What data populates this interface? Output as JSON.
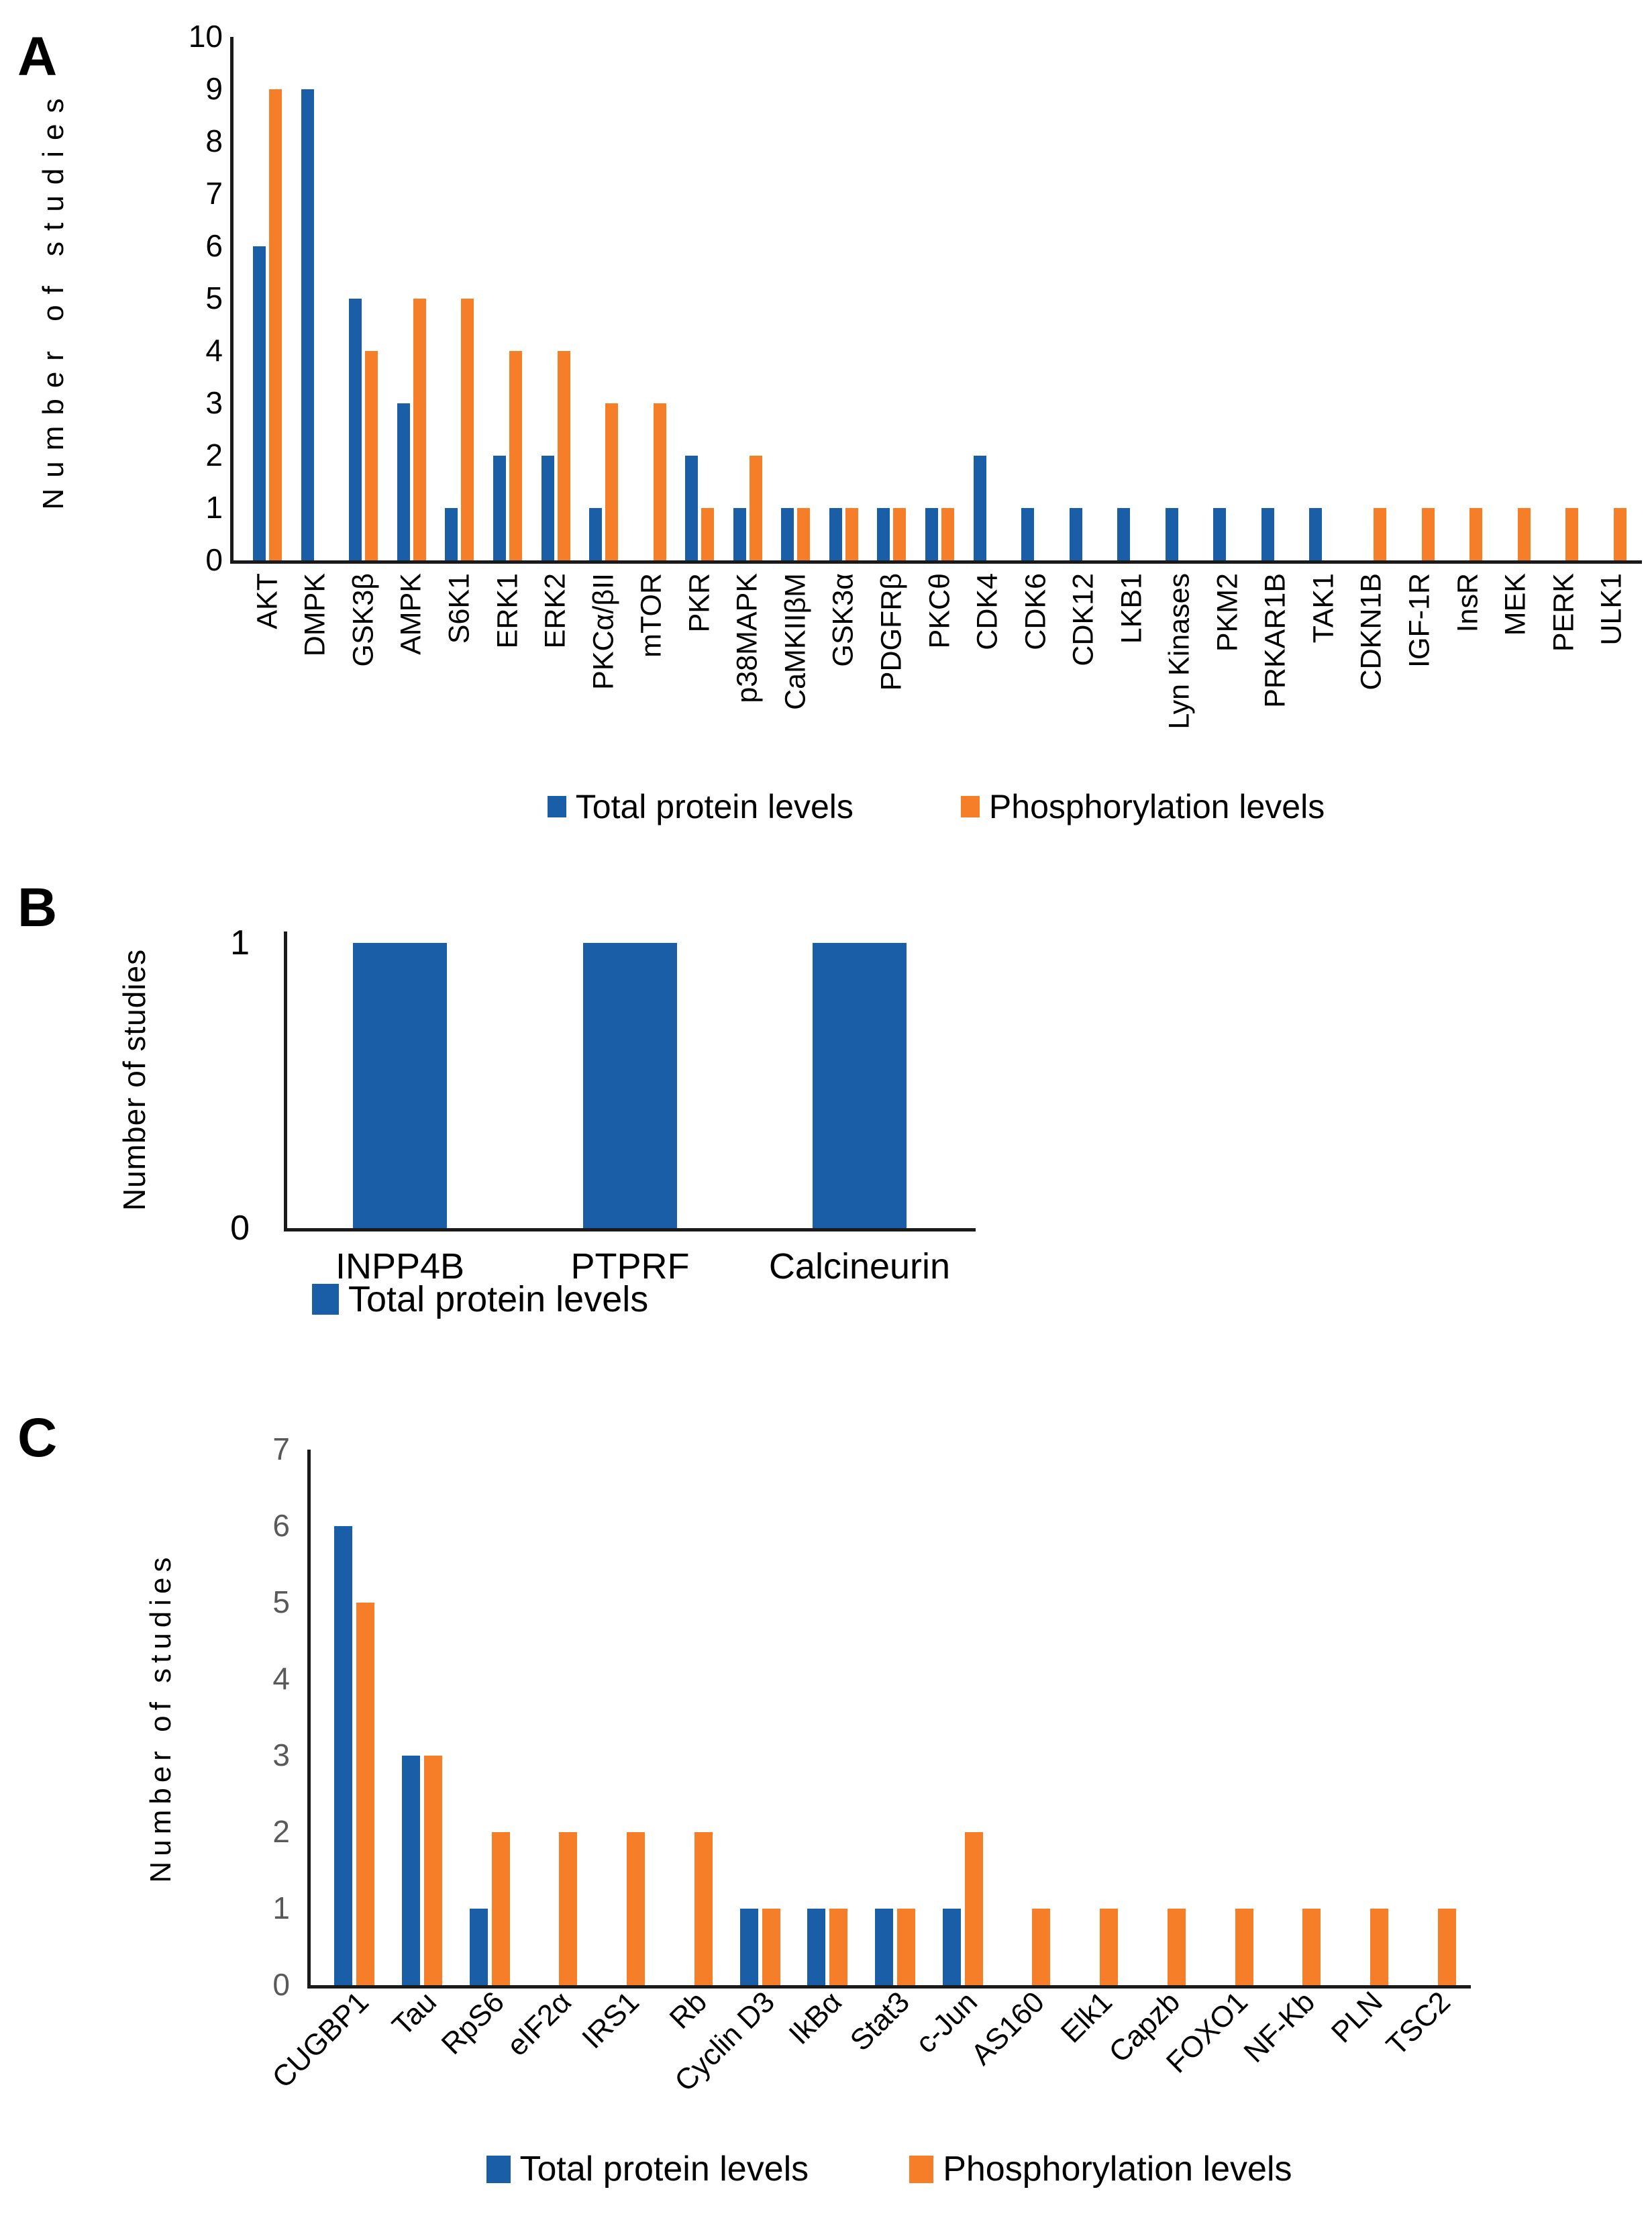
{
  "legend_labels": {
    "total": "Total protein levels",
    "phospho": "Phosphorylation levels"
  },
  "colors": {
    "total": "#1A5EA8",
    "phospho": "#F77E29",
    "axis": "#1a1a1a",
    "tick_gray": "#595959",
    "text": "#000000"
  },
  "chart_data": [
    {
      "panel": "A",
      "type": "bar",
      "title": "",
      "xlabel": "",
      "ylabel": "Number of studies",
      "ylim": [
        0,
        10
      ],
      "yticks": [
        0,
        1,
        2,
        3,
        4,
        5,
        6,
        7,
        8,
        9,
        10
      ],
      "grid": false,
      "legend_position": "bottom",
      "categories": [
        "AKT",
        "DMPK",
        "GSK3β",
        "AMPK",
        "S6K1",
        "ERK1",
        "ERK2",
        "PKCα/βII",
        "mTOR",
        "PKR",
        "p38MAPK",
        "CaMKIIβM",
        "GSK3α",
        "PDGFRβ",
        "PKCθ",
        "CDK4",
        "CDK6",
        "CDK12",
        "LKB1",
        "Lyn Kinases",
        "PKM2",
        "PRKAR1B",
        "TAK1",
        "CDKN1B",
        "IGF-1R",
        "InsR",
        "MEK",
        "PERK",
        "ULK1"
      ],
      "series": [
        {
          "name": "Total protein levels",
          "color": "#1A5EA8",
          "values": [
            6,
            9,
            5,
            3,
            1,
            2,
            2,
            1,
            0,
            2,
            1,
            1,
            1,
            1,
            1,
            2,
            1,
            1,
            1,
            1,
            1,
            1,
            1,
            0,
            0,
            0,
            0,
            0,
            0
          ]
        },
        {
          "name": "Phosphorylation levels",
          "color": "#F77E29",
          "values": [
            9,
            0,
            4,
            5,
            5,
            4,
            4,
            3,
            3,
            1,
            2,
            1,
            1,
            1,
            1,
            0,
            0,
            0,
            0,
            0,
            0,
            0,
            0,
            1,
            1,
            1,
            1,
            1,
            1
          ]
        }
      ]
    },
    {
      "panel": "B",
      "type": "bar",
      "title": "",
      "xlabel": "",
      "ylabel": "Number of studies",
      "ylim": [
        0,
        1
      ],
      "yticks": [
        0,
        1
      ],
      "grid": false,
      "legend_position": "bottom-left",
      "categories": [
        "INPP4B",
        "PTPRF",
        "Calcineurin"
      ],
      "series": [
        {
          "name": "Total protein levels",
          "color": "#1A5EA8",
          "values": [
            1,
            1,
            1
          ]
        }
      ]
    },
    {
      "panel": "C",
      "type": "bar",
      "title": "",
      "xlabel": "",
      "ylabel": "Number of studies",
      "ylim": [
        0,
        7
      ],
      "yticks": [
        0,
        1,
        2,
        3,
        4,
        5,
        6,
        7
      ],
      "grid": false,
      "legend_position": "bottom",
      "categories": [
        "CUGBP1",
        "Tau",
        "RpS6",
        "eIF2α",
        "IRS1",
        "Rb",
        "Cyclin D3",
        "IkBα",
        "Stat3",
        "c-Jun",
        "AS160",
        "Elk1",
        "Capzb",
        "FOXO1",
        "NF-Kb",
        "PLN",
        "TSC2"
      ],
      "series": [
        {
          "name": "Total protein levels",
          "color": "#1A5EA8",
          "values": [
            6,
            3,
            1,
            0,
            0,
            0,
            1,
            1,
            1,
            1,
            0,
            0,
            0,
            0,
            0,
            0,
            0
          ]
        },
        {
          "name": "Phosphorylation levels",
          "color": "#F77E29",
          "values": [
            5,
            3,
            2,
            2,
            2,
            2,
            1,
            1,
            1,
            2,
            1,
            1,
            1,
            1,
            1,
            1,
            1
          ]
        }
      ]
    }
  ]
}
